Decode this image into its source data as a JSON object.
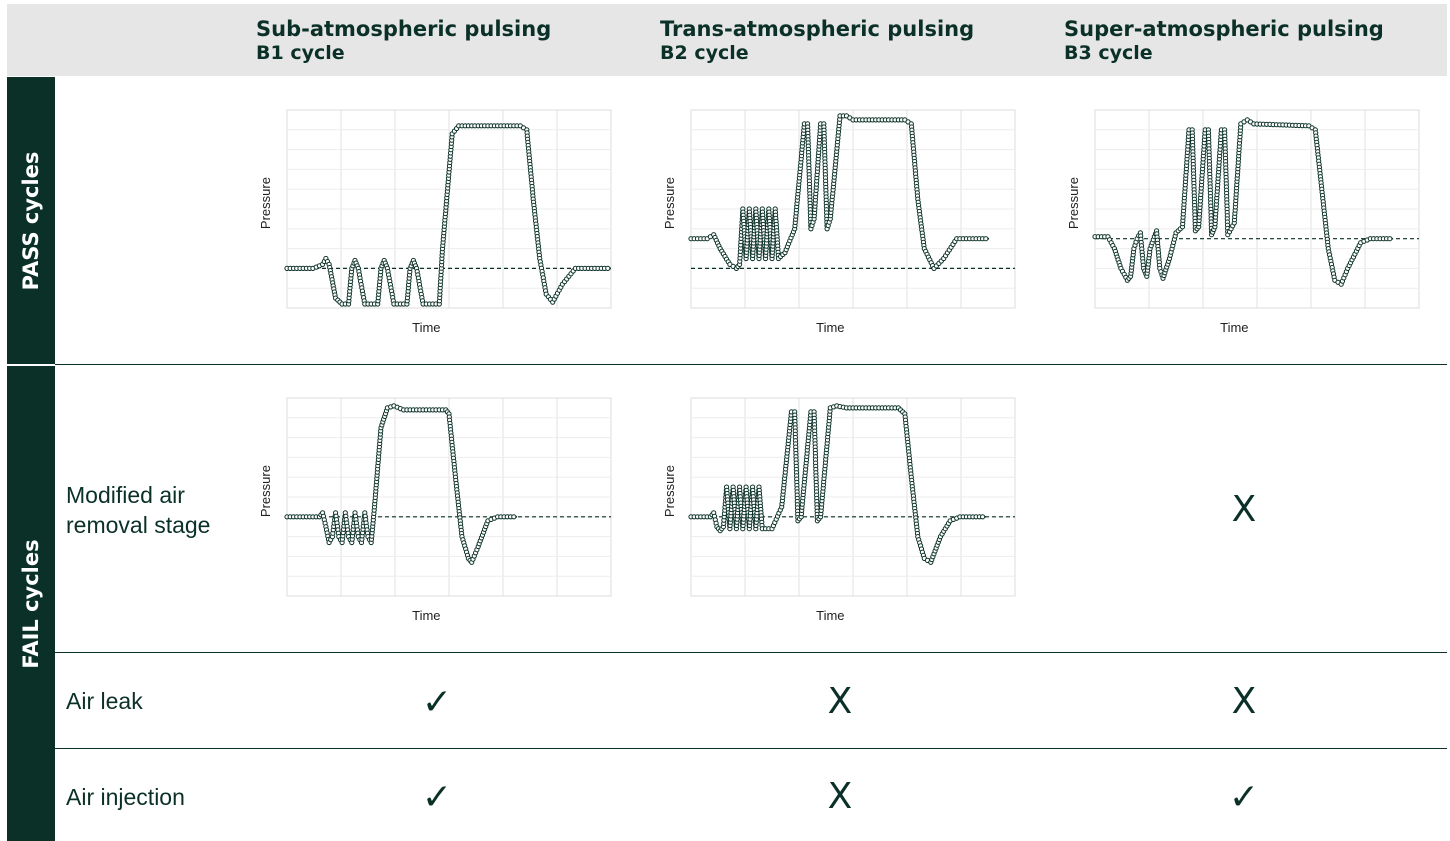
{
  "columns": [
    {
      "title": "Sub-atmospheric pulsing",
      "subtitle": "B1 cycle"
    },
    {
      "title": "Trans-atmospheric pulsing",
      "subtitle": "B2 cycle"
    },
    {
      "title": "Super-atmospheric pulsing",
      "subtitle": "B3 cycle"
    }
  ],
  "sections": {
    "pass": "PASS cycles",
    "fail": "FAIL cycles"
  },
  "rows": {
    "modified": {
      "line1": "Modified air",
      "line2": "removal stage"
    },
    "leak": "Air leak",
    "injection": "Air injection"
  },
  "marks": {
    "check": "✓",
    "cross": "X",
    "modified_b3": "X",
    "leak_b1": "✓",
    "leak_b2": "X",
    "leak_b3": "X",
    "injection_b1": "✓",
    "injection_b2": "X",
    "injection_b3": "✓"
  },
  "colors": {
    "ink": "#0b3027",
    "header_bg": "#e6e6e6",
    "grid": "#e0e0e0"
  },
  "chart_data": [
    {
      "type": "line",
      "id": "pass-b1",
      "xlabel": "Time",
      "ylabel": "Pressure",
      "reference": 0.2,
      "points": [
        [
          0,
          0.2
        ],
        [
          8,
          0.2
        ],
        [
          11,
          0.22
        ],
        [
          12,
          0.25
        ],
        [
          13,
          0.22
        ],
        [
          15,
          0.05
        ],
        [
          17,
          0.02
        ],
        [
          19,
          0.02
        ],
        [
          20,
          0.2
        ],
        [
          21,
          0.24
        ],
        [
          22,
          0.2
        ],
        [
          24,
          0.02
        ],
        [
          28,
          0.02
        ],
        [
          29,
          0.2
        ],
        [
          30,
          0.24
        ],
        [
          31,
          0.2
        ],
        [
          33,
          0.02
        ],
        [
          37,
          0.02
        ],
        [
          38,
          0.2
        ],
        [
          39,
          0.24
        ],
        [
          40,
          0.2
        ],
        [
          42,
          0.02
        ],
        [
          47,
          0.02
        ],
        [
          48,
          0.3
        ],
        [
          51,
          0.88
        ],
        [
          53,
          0.92
        ],
        [
          72,
          0.92
        ],
        [
          74,
          0.9
        ],
        [
          76,
          0.55
        ],
        [
          78,
          0.25
        ],
        [
          80,
          0.07
        ],
        [
          82,
          0.03
        ],
        [
          85,
          0.12
        ],
        [
          89,
          0.2
        ],
        [
          100,
          0.2
        ]
      ]
    },
    {
      "type": "line",
      "id": "pass-b2",
      "xlabel": "Time",
      "ylabel": "Pressure",
      "reference": 0.2,
      "points": [
        [
          0,
          0.35
        ],
        [
          5,
          0.35
        ],
        [
          7,
          0.37
        ],
        [
          9,
          0.3
        ],
        [
          12,
          0.22
        ],
        [
          14,
          0.2
        ],
        [
          15,
          0.22
        ],
        [
          16,
          0.5
        ],
        [
          17,
          0.25
        ],
        [
          18,
          0.5
        ],
        [
          19,
          0.25
        ],
        [
          20,
          0.5
        ],
        [
          21,
          0.25
        ],
        [
          22,
          0.5
        ],
        [
          23,
          0.25
        ],
        [
          24,
          0.5
        ],
        [
          25,
          0.25
        ],
        [
          26,
          0.5
        ],
        [
          27,
          0.25
        ],
        [
          29,
          0.28
        ],
        [
          32,
          0.4
        ],
        [
          35,
          0.93
        ],
        [
          36,
          0.93
        ],
        [
          37,
          0.4
        ],
        [
          38,
          0.45
        ],
        [
          40,
          0.93
        ],
        [
          41,
          0.93
        ],
        [
          42,
          0.4
        ],
        [
          43,
          0.45
        ],
        [
          46,
          0.97
        ],
        [
          48,
          0.97
        ],
        [
          50,
          0.95
        ],
        [
          66,
          0.95
        ],
        [
          68,
          0.93
        ],
        [
          70,
          0.55
        ],
        [
          72,
          0.3
        ],
        [
          75,
          0.2
        ],
        [
          78,
          0.25
        ],
        [
          82,
          0.35
        ],
        [
          92,
          0.35
        ]
      ]
    },
    {
      "type": "line",
      "id": "pass-b3",
      "xlabel": "Time",
      "ylabel": "Pressure",
      "reference": 0.35,
      "points": [
        [
          0,
          0.36
        ],
        [
          4,
          0.36
        ],
        [
          6,
          0.3
        ],
        [
          8,
          0.2
        ],
        [
          10,
          0.14
        ],
        [
          11,
          0.16
        ],
        [
          12,
          0.3
        ],
        [
          13,
          0.35
        ],
        [
          14,
          0.38
        ],
        [
          15,
          0.2
        ],
        [
          16,
          0.16
        ],
        [
          17,
          0.3
        ],
        [
          19,
          0.39
        ],
        [
          20,
          0.2
        ],
        [
          21,
          0.15
        ],
        [
          23,
          0.25
        ],
        [
          25,
          0.38
        ],
        [
          27,
          0.41
        ],
        [
          29,
          0.9
        ],
        [
          30,
          0.9
        ],
        [
          31,
          0.39
        ],
        [
          32,
          0.41
        ],
        [
          34,
          0.9
        ],
        [
          35,
          0.9
        ],
        [
          36,
          0.37
        ],
        [
          37,
          0.41
        ],
        [
          39,
          0.9
        ],
        [
          40,
          0.9
        ],
        [
          41,
          0.37
        ],
        [
          43,
          0.43
        ],
        [
          45,
          0.93
        ],
        [
          47,
          0.95
        ],
        [
          49,
          0.93
        ],
        [
          66,
          0.92
        ],
        [
          68,
          0.9
        ],
        [
          70,
          0.6
        ],
        [
          72,
          0.3
        ],
        [
          74,
          0.14
        ],
        [
          76,
          0.12
        ],
        [
          78,
          0.2
        ],
        [
          82,
          0.33
        ],
        [
          85,
          0.35
        ],
        [
          92,
          0.35
        ]
      ]
    },
    {
      "type": "line",
      "id": "fail-b1",
      "xlabel": "Time",
      "ylabel": "Pressure",
      "reference": 0.4,
      "points": [
        [
          0,
          0.4
        ],
        [
          10,
          0.4
        ],
        [
          11,
          0.42
        ],
        [
          12,
          0.35
        ],
        [
          13,
          0.27
        ],
        [
          14,
          0.3
        ],
        [
          15,
          0.42
        ],
        [
          16,
          0.3
        ],
        [
          17,
          0.27
        ],
        [
          18,
          0.42
        ],
        [
          19,
          0.3
        ],
        [
          20,
          0.27
        ],
        [
          21,
          0.42
        ],
        [
          22,
          0.3
        ],
        [
          23,
          0.27
        ],
        [
          24,
          0.42
        ],
        [
          25,
          0.3
        ],
        [
          26,
          0.27
        ],
        [
          27,
          0.45
        ],
        [
          29,
          0.85
        ],
        [
          31,
          0.95
        ],
        [
          33,
          0.96
        ],
        [
          36,
          0.94
        ],
        [
          49,
          0.94
        ],
        [
          50,
          0.92
        ],
        [
          52,
          0.6
        ],
        [
          54,
          0.3
        ],
        [
          56,
          0.19
        ],
        [
          57,
          0.17
        ],
        [
          59,
          0.25
        ],
        [
          62,
          0.38
        ],
        [
          65,
          0.4
        ],
        [
          71,
          0.4
        ]
      ]
    },
    {
      "type": "line",
      "id": "fail-b2",
      "xlabel": "Time",
      "ylabel": "Pressure",
      "reference": 0.4,
      "points": [
        [
          0,
          0.4
        ],
        [
          6,
          0.4
        ],
        [
          7,
          0.42
        ],
        [
          8,
          0.35
        ],
        [
          9,
          0.33
        ],
        [
          10,
          0.35
        ],
        [
          11,
          0.55
        ],
        [
          12,
          0.34
        ],
        [
          13,
          0.55
        ],
        [
          14,
          0.34
        ],
        [
          15,
          0.55
        ],
        [
          16,
          0.34
        ],
        [
          17,
          0.55
        ],
        [
          18,
          0.34
        ],
        [
          19,
          0.55
        ],
        [
          20,
          0.34
        ],
        [
          21,
          0.55
        ],
        [
          22,
          0.34
        ],
        [
          25,
          0.34
        ],
        [
          28,
          0.45
        ],
        [
          31,
          0.93
        ],
        [
          32,
          0.93
        ],
        [
          33,
          0.38
        ],
        [
          34,
          0.4
        ],
        [
          37,
          0.93
        ],
        [
          38,
          0.93
        ],
        [
          39,
          0.38
        ],
        [
          40,
          0.4
        ],
        [
          43,
          0.95
        ],
        [
          45,
          0.96
        ],
        [
          48,
          0.95
        ],
        [
          64,
          0.95
        ],
        [
          66,
          0.92
        ],
        [
          68,
          0.6
        ],
        [
          70,
          0.3
        ],
        [
          72,
          0.19
        ],
        [
          74,
          0.17
        ],
        [
          77,
          0.3
        ],
        [
          80,
          0.38
        ],
        [
          83,
          0.4
        ],
        [
          91,
          0.4
        ]
      ]
    }
  ]
}
